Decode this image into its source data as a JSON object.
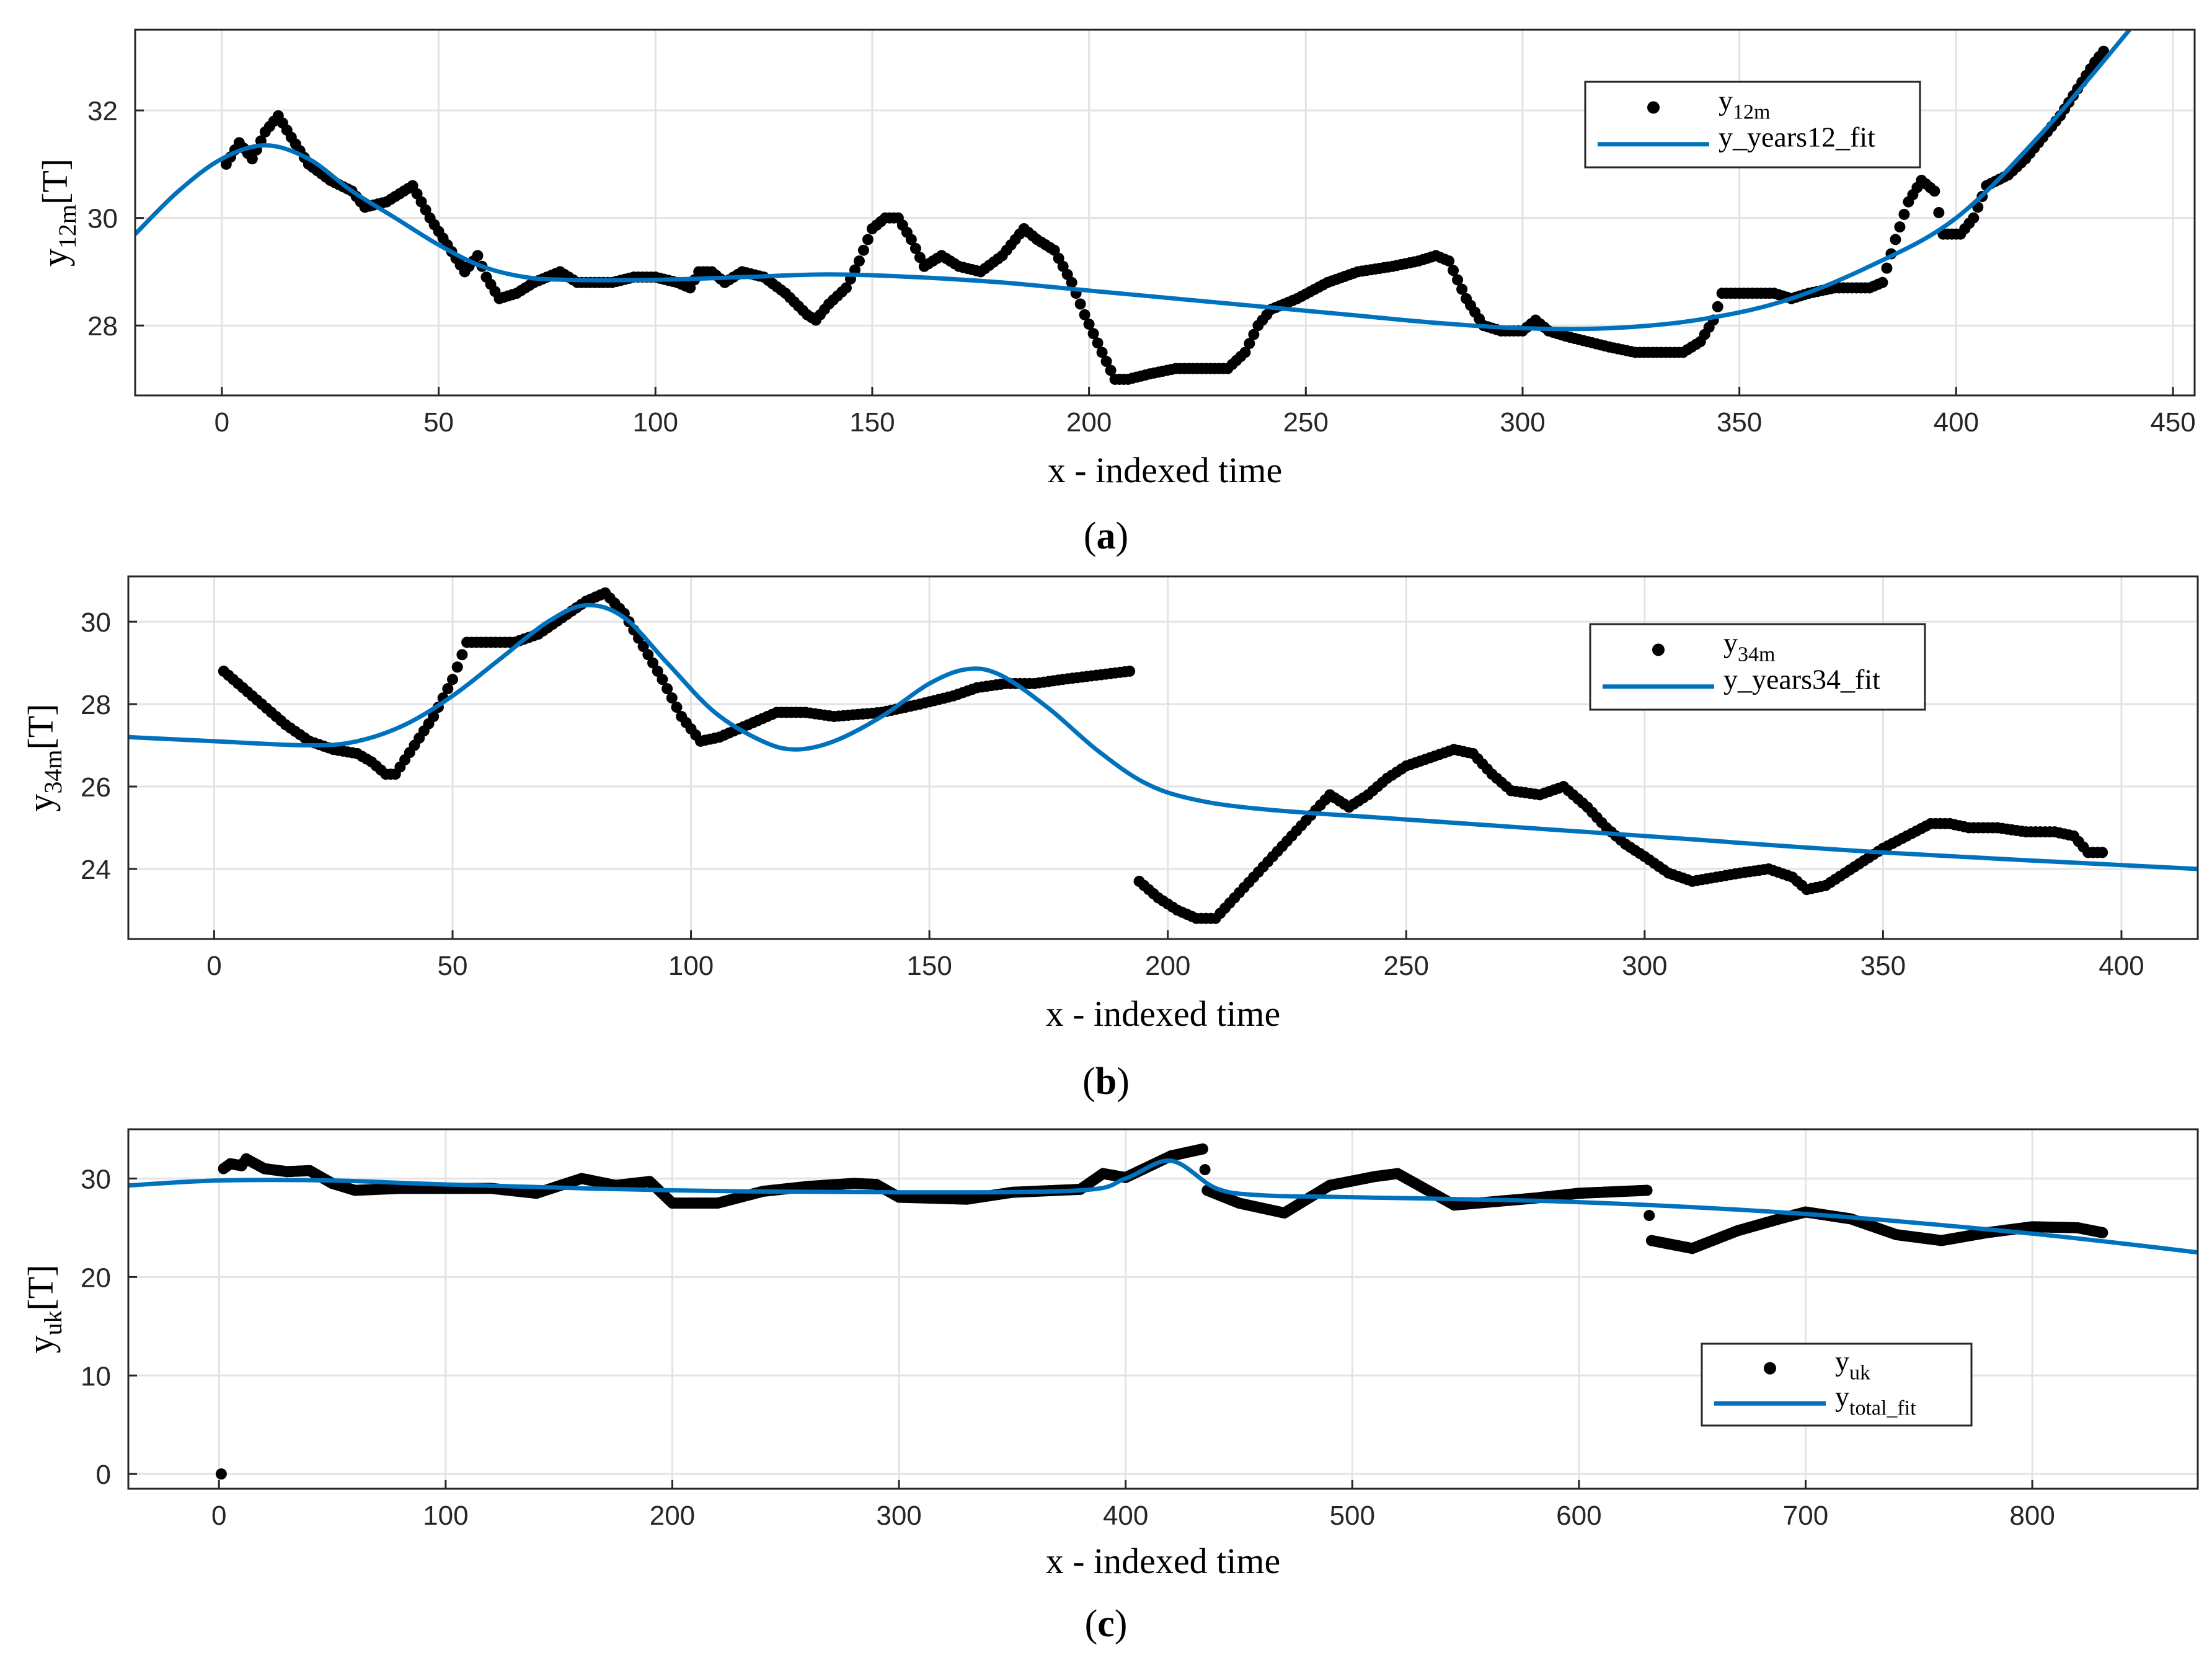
{
  "chart_data": [
    {
      "id": "a",
      "type": "scatter",
      "caption_letter": "a",
      "xlabel": "x - indexed time",
      "ylabel_main": "y",
      "ylabel_sub": "12m",
      "ylabel_unit": "[T]",
      "xlim": [
        -20,
        455
      ],
      "ylim": [
        26.7,
        33.5
      ],
      "xticks": [
        0,
        50,
        100,
        150,
        200,
        250,
        300,
        350,
        400,
        450
      ],
      "yticks": [
        28,
        30,
        32
      ],
      "legend_position": "top-right",
      "legend": [
        {
          "kind": "marker",
          "main": "y",
          "sub": "12m"
        },
        {
          "kind": "line",
          "main": "y_years12_fit",
          "sub": ""
        }
      ],
      "colors": {
        "points": "#000000",
        "fit": "#0072BD"
      },
      "points": [
        [
          1,
          31
        ],
        [
          4,
          31.4
        ],
        [
          7,
          31.1
        ],
        [
          10,
          31.6
        ],
        [
          13,
          31.9
        ],
        [
          16,
          31.5
        ],
        [
          20,
          31
        ],
        [
          25,
          30.7
        ],
        [
          30,
          30.5
        ],
        [
          33,
          30.2
        ],
        [
          38,
          30.3
        ],
        [
          42,
          30.5
        ],
        [
          44,
          30.6
        ],
        [
          48,
          30
        ],
        [
          52,
          29.5
        ],
        [
          56,
          29
        ],
        [
          59,
          29.3
        ],
        [
          61,
          28.9
        ],
        [
          64,
          28.5
        ],
        [
          68,
          28.6
        ],
        [
          72,
          28.8
        ],
        [
          78,
          29
        ],
        [
          82,
          28.8
        ],
        [
          90,
          28.8
        ],
        [
          95,
          28.9
        ],
        [
          100,
          28.9
        ],
        [
          105,
          28.8
        ],
        [
          108,
          28.7
        ],
        [
          110,
          29
        ],
        [
          113,
          29
        ],
        [
          116,
          28.8
        ],
        [
          120,
          29
        ],
        [
          125,
          28.9
        ],
        [
          130,
          28.6
        ],
        [
          135,
          28.2
        ],
        [
          137,
          28.1
        ],
        [
          140,
          28.4
        ],
        [
          144,
          28.7
        ],
        [
          147,
          29.2
        ],
        [
          150,
          29.8
        ],
        [
          153,
          30
        ],
        [
          156,
          30
        ],
        [
          159,
          29.6
        ],
        [
          162,
          29.1
        ],
        [
          166,
          29.3
        ],
        [
          170,
          29.1
        ],
        [
          175,
          29
        ],
        [
          180,
          29.3
        ],
        [
          185,
          29.8
        ],
        [
          188,
          29.6
        ],
        [
          192,
          29.4
        ],
        [
          196,
          28.8
        ],
        [
          199,
          28.2
        ],
        [
          203,
          27.5
        ],
        [
          206,
          27
        ],
        [
          209,
          27
        ],
        [
          214,
          27.1
        ],
        [
          220,
          27.2
        ],
        [
          226,
          27.2
        ],
        [
          232,
          27.2
        ],
        [
          236,
          27.5
        ],
        [
          239,
          28
        ],
        [
          242,
          28.3
        ],
        [
          248,
          28.5
        ],
        [
          255,
          28.8
        ],
        [
          262,
          29
        ],
        [
          270,
          29.1
        ],
        [
          276,
          29.2
        ],
        [
          280,
          29.3
        ],
        [
          283,
          29.2
        ],
        [
          287,
          28.5
        ],
        [
          291,
          28
        ],
        [
          295,
          27.9
        ],
        [
          300,
          27.9
        ],
        [
          303,
          28.1
        ],
        [
          306,
          27.9
        ],
        [
          310,
          27.8
        ],
        [
          315,
          27.7
        ],
        [
          320,
          27.6
        ],
        [
          326,
          27.5
        ],
        [
          332,
          27.5
        ],
        [
          337,
          27.5
        ],
        [
          341,
          27.7
        ],
        [
          344,
          28.1
        ],
        [
          346,
          28.6
        ],
        [
          350,
          28.6
        ],
        [
          354,
          28.6
        ],
        [
          358,
          28.6
        ],
        [
          362,
          28.5
        ],
        [
          366,
          28.6
        ],
        [
          372,
          28.7
        ],
        [
          376,
          28.7
        ],
        [
          380,
          28.7
        ],
        [
          383,
          28.8
        ],
        [
          386,
          29.6
        ],
        [
          389,
          30.3
        ],
        [
          392,
          30.7
        ],
        [
          395,
          30.5
        ],
        [
          397,
          29.7
        ],
        [
          401,
          29.7
        ],
        [
          404,
          30
        ],
        [
          407,
          30.6
        ],
        [
          412,
          30.8
        ],
        [
          416,
          31.1
        ],
        [
          420,
          31.5
        ],
        [
          424,
          31.9
        ],
        [
          428,
          32.4
        ],
        [
          432,
          32.9
        ],
        [
          434,
          33.1
        ]
      ],
      "fit": [
        [
          -20,
          29.7
        ],
        [
          -10,
          30.5
        ],
        [
          0,
          31.1
        ],
        [
          10,
          31.35
        ],
        [
          20,
          31.1
        ],
        [
          30,
          30.5
        ],
        [
          40,
          30
        ],
        [
          50,
          29.5
        ],
        [
          60,
          29.1
        ],
        [
          70,
          28.9
        ],
        [
          80,
          28.85
        ],
        [
          100,
          28.85
        ],
        [
          120,
          28.9
        ],
        [
          140,
          28.95
        ],
        [
          160,
          28.9
        ],
        [
          180,
          28.8
        ],
        [
          200,
          28.65
        ],
        [
          220,
          28.5
        ],
        [
          240,
          28.35
        ],
        [
          260,
          28.2
        ],
        [
          280,
          28.05
        ],
        [
          300,
          27.95
        ],
        [
          320,
          27.95
        ],
        [
          340,
          28.1
        ],
        [
          360,
          28.45
        ],
        [
          380,
          29.1
        ],
        [
          400,
          30
        ],
        [
          420,
          31.6
        ],
        [
          440,
          33.5
        ]
      ]
    },
    {
      "id": "b",
      "type": "scatter",
      "caption_letter": "b",
      "xlabel": "x - indexed time",
      "ylabel_main": "y",
      "ylabel_sub": "34m",
      "ylabel_unit": "[T]",
      "xlim": [
        -18,
        416
      ],
      "ylim": [
        22.3,
        31.1
      ],
      "xticks": [
        0,
        50,
        100,
        150,
        200,
        250,
        300,
        350,
        400
      ],
      "yticks": [
        24,
        26,
        28,
        30
      ],
      "legend_position": "top-right",
      "legend": [
        {
          "kind": "marker",
          "main": "y",
          "sub": "34m"
        },
        {
          "kind": "line",
          "main": "y_years34_fit",
          "sub": ""
        }
      ],
      "colors": {
        "points": "#000000",
        "fit": "#0072BD"
      },
      "points": [
        [
          2,
          28.8
        ],
        [
          6,
          28.4
        ],
        [
          10,
          28
        ],
        [
          15,
          27.5
        ],
        [
          20,
          27.1
        ],
        [
          25,
          26.9
        ],
        [
          30,
          26.8
        ],
        [
          33,
          26.6
        ],
        [
          36,
          26.3
        ],
        [
          38,
          26.3
        ],
        [
          42,
          27
        ],
        [
          46,
          27.7
        ],
        [
          50,
          28.6
        ],
        [
          53,
          29.5
        ],
        [
          58,
          29.5
        ],
        [
          63,
          29.5
        ],
        [
          68,
          29.7
        ],
        [
          73,
          30.1
        ],
        [
          78,
          30.5
        ],
        [
          82,
          30.7
        ],
        [
          86,
          30.2
        ],
        [
          90,
          29.4
        ],
        [
          94,
          28.6
        ],
        [
          98,
          27.7
        ],
        [
          102,
          27.1
        ],
        [
          106,
          27.2
        ],
        [
          112,
          27.5
        ],
        [
          118,
          27.8
        ],
        [
          124,
          27.8
        ],
        [
          130,
          27.7
        ],
        [
          140,
          27.8
        ],
        [
          148,
          28
        ],
        [
          155,
          28.2
        ],
        [
          160,
          28.4
        ],
        [
          166,
          28.5
        ],
        [
          172,
          28.5
        ],
        [
          178,
          28.6
        ],
        [
          185,
          28.7
        ],
        [
          192,
          28.8
        ],
        [
          194,
          23.7
        ],
        [
          198,
          23.3
        ],
        [
          202,
          23
        ],
        [
          206,
          22.8
        ],
        [
          210,
          22.8
        ],
        [
          214,
          23.3
        ],
        [
          218,
          23.8
        ],
        [
          222,
          24.3
        ],
        [
          226,
          24.8
        ],
        [
          230,
          25.3
        ],
        [
          234,
          25.8
        ],
        [
          238,
          25.5
        ],
        [
          242,
          25.8
        ],
        [
          246,
          26.2
        ],
        [
          250,
          26.5
        ],
        [
          255,
          26.7
        ],
        [
          260,
          26.9
        ],
        [
          264,
          26.8
        ],
        [
          268,
          26.3
        ],
        [
          272,
          25.9
        ],
        [
          278,
          25.8
        ],
        [
          283,
          26
        ],
        [
          288,
          25.5
        ],
        [
          292,
          25
        ],
        [
          296,
          24.6
        ],
        [
          300,
          24.3
        ],
        [
          305,
          23.9
        ],
        [
          310,
          23.7
        ],
        [
          315,
          23.8
        ],
        [
          320,
          23.9
        ],
        [
          326,
          24
        ],
        [
          331,
          23.8
        ],
        [
          334,
          23.5
        ],
        [
          338,
          23.6
        ],
        [
          342,
          23.9
        ],
        [
          346,
          24.2
        ],
        [
          350,
          24.5
        ],
        [
          355,
          24.8
        ],
        [
          360,
          25.1
        ],
        [
          364,
          25.1
        ],
        [
          368,
          25
        ],
        [
          374,
          25
        ],
        [
          380,
          24.9
        ],
        [
          386,
          24.9
        ],
        [
          390,
          24.8
        ],
        [
          393,
          24.4
        ],
        [
          396,
          24.4
        ]
      ],
      "fit": [
        [
          -18,
          27.2
        ],
        [
          0,
          27.1
        ],
        [
          20,
          27
        ],
        [
          30,
          27.1
        ],
        [
          40,
          27.5
        ],
        [
          50,
          28.2
        ],
        [
          60,
          29.1
        ],
        [
          70,
          30
        ],
        [
          78,
          30.4
        ],
        [
          86,
          30.1
        ],
        [
          95,
          29
        ],
        [
          105,
          27.8
        ],
        [
          115,
          27.1
        ],
        [
          122,
          26.9
        ],
        [
          130,
          27.1
        ],
        [
          140,
          27.7
        ],
        [
          150,
          28.5
        ],
        [
          158,
          28.85
        ],
        [
          165,
          28.7
        ],
        [
          175,
          27.9
        ],
        [
          185,
          26.9
        ],
        [
          195,
          26.1
        ],
        [
          205,
          25.7
        ],
        [
          220,
          25.45
        ],
        [
          250,
          25.2
        ],
        [
          300,
          24.8
        ],
        [
          350,
          24.4
        ],
        [
          416,
          24
        ]
      ]
    },
    {
      "id": "c",
      "type": "scatter",
      "caption_letter": "c",
      "xlabel": "x - indexed time",
      "ylabel_main": "y",
      "ylabel_sub": "uk",
      "ylabel_unit": "[T]",
      "xlim": [
        -40,
        873
      ],
      "ylim": [
        -1.5,
        35
      ],
      "xticks": [
        0,
        100,
        200,
        300,
        400,
        500,
        600,
        700,
        800
      ],
      "yticks": [
        0,
        10,
        20,
        30
      ],
      "legend_position": "bottom-right",
      "legend": [
        {
          "kind": "marker",
          "main": "y",
          "sub": "uk"
        },
        {
          "kind": "line",
          "main": "y",
          "sub": "total_fit"
        }
      ],
      "colors": {
        "points": "#000000",
        "fit": "#0072BD"
      },
      "points": [
        [
          1,
          0
        ],
        [
          2,
          31
        ],
        [
          5,
          31.5
        ],
        [
          10,
          31.3
        ],
        [
          12,
          32
        ],
        [
          20,
          31
        ],
        [
          30,
          30.7
        ],
        [
          40,
          30.8
        ],
        [
          50,
          29.5
        ],
        [
          60,
          28.8
        ],
        [
          80,
          29
        ],
        [
          100,
          29
        ],
        [
          120,
          29
        ],
        [
          140,
          28.5
        ],
        [
          160,
          30
        ],
        [
          175,
          29.3
        ],
        [
          190,
          29.7
        ],
        [
          200,
          27.5
        ],
        [
          220,
          27.5
        ],
        [
          240,
          28.7
        ],
        [
          260,
          29.2
        ],
        [
          280,
          29.5
        ],
        [
          290,
          29.4
        ],
        [
          300,
          28.1
        ],
        [
          330,
          27.9
        ],
        [
          350,
          28.6
        ],
        [
          380,
          28.9
        ],
        [
          390,
          30.5
        ],
        [
          400,
          30.1
        ],
        [
          420,
          32.3
        ],
        [
          434,
          33
        ],
        [
          436,
          28.8
        ],
        [
          450,
          27.5
        ],
        [
          470,
          26.5
        ],
        [
          490,
          29.3
        ],
        [
          510,
          30.2
        ],
        [
          520,
          30.5
        ],
        [
          545,
          27.3
        ],
        [
          560,
          27.6
        ],
        [
          580,
          28
        ],
        [
          600,
          28.5
        ],
        [
          630,
          28.8
        ],
        [
          632,
          23.7
        ],
        [
          650,
          22.9
        ],
        [
          670,
          24.7
        ],
        [
          690,
          26
        ],
        [
          700,
          26.6
        ],
        [
          720,
          25.9
        ],
        [
          740,
          24.3
        ],
        [
          760,
          23.7
        ],
        [
          780,
          24.5
        ],
        [
          800,
          25.1
        ],
        [
          820,
          25
        ],
        [
          831,
          24.5
        ]
      ],
      "fit": [
        [
          -40,
          29.3
        ],
        [
          0,
          29.8
        ],
        [
          50,
          29.8
        ],
        [
          100,
          29.4
        ],
        [
          200,
          28.8
        ],
        [
          300,
          28.6
        ],
        [
          380,
          28.8
        ],
        [
          400,
          30
        ],
        [
          420,
          31.8
        ],
        [
          440,
          29
        ],
        [
          460,
          28.3
        ],
        [
          500,
          28.1
        ],
        [
          600,
          27.6
        ],
        [
          700,
          26.4
        ],
        [
          800,
          24.4
        ],
        [
          873,
          22.5
        ]
      ]
    }
  ]
}
